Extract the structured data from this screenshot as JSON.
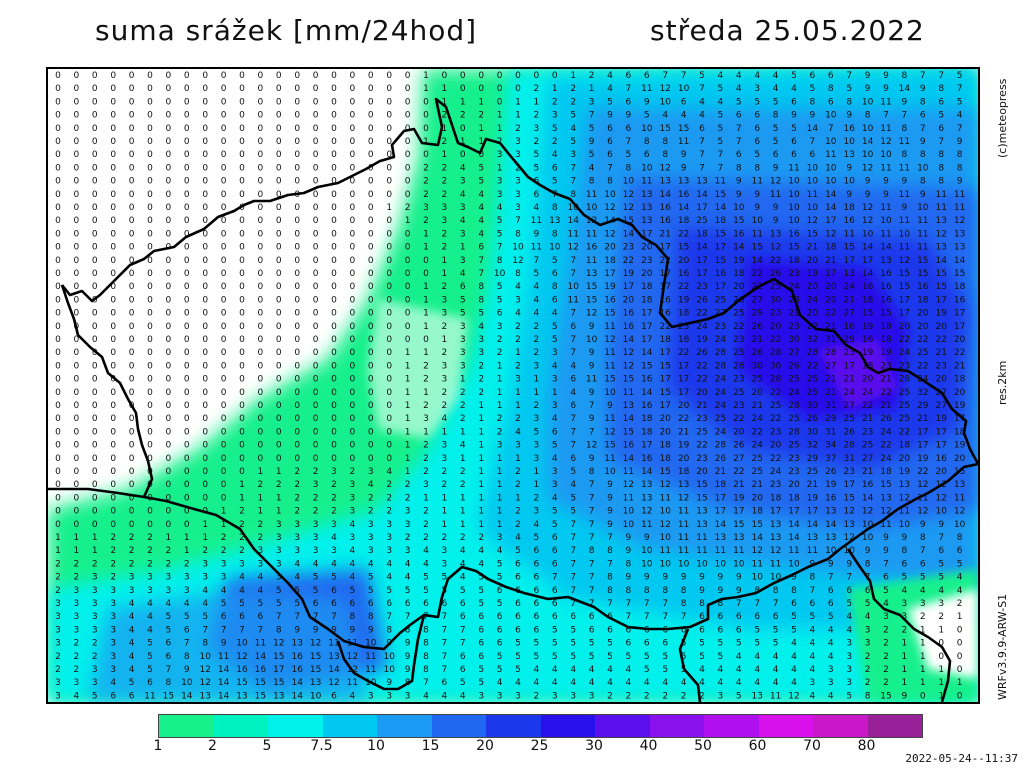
{
  "header": {
    "title_left": "suma srážek [mm/24hod]",
    "title_right": "středa 25.05.2022"
  },
  "side_labels": {
    "credit": "(c)meteopress",
    "resolution": "res.2km",
    "model": "WRFv3.9.9-ARW-S1"
  },
  "legend": {
    "colors": [
      "#18f08c",
      "#00f2c0",
      "#00f0ec",
      "#00c8f0",
      "#1a9af2",
      "#2068f0",
      "#1c38ec",
      "#2810ea",
      "#5a10ec",
      "#8a10ee",
      "#b010ee",
      "#d810ec",
      "#c818c8",
      "#982098"
    ],
    "labels": [
      "1",
      "2",
      "5",
      "7.5",
      "10",
      "15",
      "20",
      "25",
      "30",
      "40",
      "50",
      "60",
      "70",
      "80"
    ]
  },
  "timestamp": "2022-05-24--11:37",
  "map": {
    "region": "Czech Republic",
    "value_rows": [
      "0 0 0 0 0 0 0 0 0 0 0 0 0 0 0 0 0 0 0 0 1 0 0 0 0 0 0 0 1 2 4 6 6 7 7 5 4 4 4 4 5 6 6 7 9 9 8 7 7 5",
      "0 0 0 0 0 0 0 0 0 0 0 0 0 0 0 0 0 0 0 0 1 1 0 0 0 0 2 1 2 1 4 7 11 12 10 7 5 4 3 4 4 5 8 5 9 9 14 9 8 7",
      "0 0 0 0 0 0 0 0 0 0 0 0 0 0 0 0 0 0 0 0 0 1 1 1 0 1 1 2 2 3 5 6 9 10 6 4 4 5 5 5 6 8 6 8 10 11 9 8 6 5",
      "0 0 0 0 0 0 0 0 0 0 0 0 0 0 0 0 0 0 0 0 0 2 2 2 1 1 2 3 5 7 9 9 5 4 4 4 5 6 6 8 9 9 10 9 8 7 7 6 5 4",
      "0 0 0 0 0 0 0 0 0 0 0 0 0 0 0 0 0 0 0 0 0 1 0 1 1 2 3 5 4 5 6 6 10 15 15 6 5 7 6 5 5 14 7 16 10 11 8 7 6 7",
      "0 0 0 0 0 0 0 0 0 0 0 0 0 0 0 0 0 0 0 0 1 2 1 1 2 3 2 2 5 9 6 7 8 8 11 7 5 7 6 5 6 7 10 10 14 12 11 9 7 9",
      "0 0 0 0 0 0 0 0 0 0 0 0 0 0 0 0 0 0 0 0 0 1 0 0 3 3 5 4 3 5 6 5 6 8 9 7 7 6 5 6 6 6 11 13 10 10 8 8 8 8",
      "0 0 0 0 0 0 0 0 0 0 0 0 0 0 0 0 0 0 0 0 2 2 4 5 1 2 5 6 7 4 7 8 10 12 9 7 7 8 8 9 11 10 10 9 12 11 11 10 8 8",
      "0 0 0 0 0 0 0 0 0 0 0 0 0 0 0 0 0 0 0 0 2 2 3 5 3 3 6 5 7 8 8 10 11 13 13 13 11 9 11 12 10 10 10 10 9 9 9 8 8 9",
      "0 0 0 0 0 0 0 0 0 0 0 0 0 0 0 0 0 0 0 0 2 2 4 4 3 3 6 7 8 11 10 12 13 14 16 14 15 9 9 11 10 11 14 9 9 9 11 9 11 11",
      "0 0 0 0 0 0 0 0 0 0 0 0 0 0 0 0 0 0 1 2 3 3 3 4 4 3 4 8 10 10 12 12 13 16 14 17 14 10 9 9 10 10 14 18 12 11 9 10 11 11",
      "0 0 0 0 0 0 0 0 0 0 0 0 0 0 0 0 0 0 0 1 2 3 4 4 5 7 11 13 14 12 14 15 13 16 18 25 18 15 10 9 10 12 17 16 12 10 11 11 13 12",
      "0 0 0 0 0 0 0 0 0 0 0 0 0 0 0 0 0 0 0 0 1 2 3 4 5 8 9 8 11 11 12 14 17 21 22 18 15 16 11 13 16 15 12 11 10 11 10 11 12 13",
      "0 0 0 0 0 0 0 0 0 0 0 0 0 0 0 0 0 0 0 0 1 2 1 6 7 10 11 10 12 16 20 23 20 17 15 14 17 14 15 12 15 21 18 15 14 14 11 11 13 13",
      "0 0 0 0 0 0 0 0 0 0 0 0 0 0 0 0 0 0 0 0 0 1 3 7 8 12 7 5 7 11 18 22 23 22 20 17 15 19 14 22 18 20 21 17 17 13 12 15 14 14",
      "0 0 0 0 0 0 0 0 0 0 0 0 0 0 0 0 0 0 0 0 0 1 4 7 10 8 5 6 7 13 17 19 20 17 16 17 16 18 22 26 23 19 17 13 14 16 15 15 15 15",
      "0 0 0 0 0 0 0 0 0 0 0 0 0 0 0 0 0 0 0 0 1 2 6 8 5 4 4 8 10 15 19 17 18 17 22 23 17 20 22 25 24 20 20 24 16 16 15 16 15 18",
      "0 0 0 0 0 0 0 0 0 0 0 0 0 0 0 0 0 0 0 0 1 3 5 8 5 3 4 6 11 15 16 20 18 16 19 26 25 26 27 30 28 24 20 21 18 16 17 18 17 16",
      "0 0 0 0 0 0 0 0 0 0 0 0 0 0 0 0 0 0 0 0 1 3 5 5 6 4 4 4 7 12 15 16 17 16 18 22 27 25 29 23 21 20 22 27 15 15 17 20 19 17",
      "0 0 0 0 0 0 0 0 0 0 0 0 0 0 0 0 0 0 0 0 1 2 3 4 3 2 2 5 6 9 11 16 17 22 23 24 23 22 26 20 23 22 21 16 19 18 20 20 20 17",
      "0 0 0 0 0 0 0 0 0 0 0 0 0 0 0 0 0 0 0 0 0 1 3 3 2 2 2 5 7 10 12 14 17 18 18 19 24 23 21 22 30 32 31 29 16 18 22 22 22 20",
      "0 0 0 0 0 0 0 0 0 0 0 0 0 0 0 0 0 0 0 1 1 2 3 3 2 1 2 3 7 9 11 12 14 17 22 26 28 25 26 28 27 28 28 23 19 19 24 25 21 22",
      "0 0 0 0 0 0 0 0 0 0 0 0 0 0 0 0 0 0 0 1 2 3 3 2 1 2 3 4 4 9 11 12 15 15 17 22 28 28 30 30 26 22 27 17 18 23 23 22 23 21",
      "0 0 0 0 0 0 0 0 0 0 0 0 0 0 0 0 0 0 0 1 2 3 1 2 1 3 1 3 6 11 15 15 16 17 17 22 24 23 25 28 25 25 21 21 20 21 28 24 20 18",
      "0 0 0 0 0 0 0 0 0 0 0 0 0 0 0 0 0 0 0 1 1 2 2 2 1 1 1 1 4 9 10 11 14 15 17 20 24 25 20 22 24 25 21 24 24 22 25 32 27 20",
      "0 0 0 0 0 0 0 0 0 0 0 0 0 0 0 0 0 0 0 1 2 2 2 1 1 1 2 3 6 7 9 13 16 17 20 21 24 23 21 25 28 30 31 27 22 21 25 29 27 19",
      "0 0 0 0 0 0 0 0 0 0 0 0 0 0 0 0 0 0 0 1 3 4 2 1 2 2 3 4 7 9 11 14 18 20 22 23 25 22 24 22 25 26 29 25 21 26 25 21 19 17",
      "0 0 0 0 0 0 0 0 0 0 0 0 0 0 0 0 0 0 0 1 1 1 1 1 2 4 5 6 7 7 12 15 18 20 21 25 24 20 22 23 28 30 31 26 23 24 22 17 17 18",
      "0 0 0 0 0 0 0 0 0 0 0 0 0 0 0 0 0 0 0 1 2 3 4 1 3 3 3 5 7 12 15 16 17 18 19 22 28 26 24 20 25 32 34 28 25 22 18 17 17 19",
      "0 0 0 0 0 0 0 0 0 0 0 0 0 0 0 0 0 0 0 1 2 3 1 1 1 1 3 4 6 9 11 14 16 18 20 23 26 27 25 22 23 29 37 31 27 24 20 19 16 20",
      "0 0 0 0 0 0 0 0 0 0 0 1 1 2 2 3 2 3 4 1 2 2 2 1 1 2 1 3 5 8 10 11 14 15 18 20 21 22 25 24 23 25 26 23 21 18 19 22 20 15",
      "0 0 0 0 0 0 0 0 0 0 1 2 2 2 3 2 3 4 2 2 3 2 2 1 1 2 1 3 4 7 9 12 13 12 13 15 18 21 21 23 20 21 19 17 16 15 13 12 12 13",
      "0 0 0 0 0 0 0 0 0 0 1 1 1 2 2 2 3 2 2 2 1 1 1 1 1 1 2 4 5 7 9 11 13 11 12 15 17 19 20 18 18 19 16 15 14 13 12 11 12 11",
      "0 0 0 0 0 0 0 0 0 1 2 1 1 2 2 2 3 2 2 3 2 1 1 1 1 2 3 5 5 7 9 10 12 10 11 13 17 17 18 17 17 17 13 12 12 12 11 12 10 12",
      "0 0 0 0 0 0 0 0 1 1 2 2 3 3 3 3 4 3 3 3 2 1 1 1 1 2 4 5 7 7 9 10 11 12 11 13 14 15 15 13 14 14 14 13 10 11 10 9 9 10",
      "1 1 1 2 2 2 1 1 1 2 2 2 3 3 3 4 3 3 3 2 2 2 2 2 3 4 5 6 7 7 7 9 9 10 11 11 13 13 14 13 14 13 13 12 10 9 9 8 7 8",
      "1 1 1 2 2 2 2 1 2 2 2 3 3 3 3 3 4 3 3 3 4 3 4 4 4 5 6 6 7 8 8 9 10 11 11 11 11 11 12 12 11 11 10 10 9 9 8 7 6 6",
      "2 2 2 2 2 2 2 2 3 3 3 3 3 4 4 4 4 4 4 4 4 3 4 4 5 6 6 6 7 7 7 8 10 10 10 10 10 10 11 11 10 9 9 9 8 7 6 6 5 5",
      "2 2 3 2 3 3 3 3 3 3 4 4 3 4 5 5 4 5 4 4 5 5 4 5 5 6 6 7 7 7 8 9 9 9 9 9 9 9 10 10 9 8 7 7 7 6 5 5 5 4",
      "2 3 3 3 3 3 3 3 4 4 4 4 5 5 5 6 5 5 5 5 5 5 5 5 6 6 6 6 7 7 8 8 8 8 8 9 9 9 8 8 8 7 6 6 6 5 4 4 4 4",
      "3 3 3 3 4 4 4 4 4 5 5 5 5 5 6 6 6 6 6 6 6 6 6 5 5 6 6 6 7 7 7 7 7 7 8 8 8 7 7 7 6 6 6 5 5 4 3 3 3 2",
      "3 3 3 3 4 4 5 5 5 6 6 6 7 7 7 7 8 8 7 7 7 7 6 6 6 6 6 6 6 6 6 7 7 7 7 6 6 6 6 6 5 5 5 4 4 3 3 2 2 1",
      "3 3 3 3 4 4 5 6 7 7 7 7 8 9 9 9 9 9 8 8 8 7 7 6 6 6 6 5 5 6 6 6 6 6 6 6 6 6 5 5 5 4 4 4 3 2 2 1 1 0",
      "3 2 2 3 4 5 6 7 8 9 10 11 12 13 12 11 11 10 9 9 8 7 7 6 6 5 5 5 5 5 5 6 6 6 5 5 5 5 5 5 4 4 4 3 3 2 1 1 0 0",
      "2 2 2 3 4 5 6 8 10 11 12 14 15 16 15 13 12 11 10 9 8 7 6 6 5 5 5 5 5 5 5 5 5 5 5 5 5 4 4 4 4 4 4 3 2 2 1 1 0 0",
      "2 2 3 3 4 5 7 9 12 14 16 16 17 16 15 14 12 11 10 9 8 7 6 5 5 5 4 4 4 4 4 4 5 5 5 4 4 4 4 4 4 4 3 3 2 2 1 1 1 0",
      "3 3 3 4 5 6 8 10 12 14 15 15 15 14 13 12 11 10 9 8 7 6 5 5 4 4 4 4 4 4 4 4 4 4 4 4 4 4 4 4 4 3 3 3 2 2 1 1 1 1",
      "3 4 5 6 6 11 15 14 13 14 13 15 13 14 10 6 4 3 3 3 4 4 4 3 3 3 2 3 3 3 2 2 2 2 2 2 3 5 13 11 12 4 4 5 8 15 9 0 1 0"
    ]
  }
}
